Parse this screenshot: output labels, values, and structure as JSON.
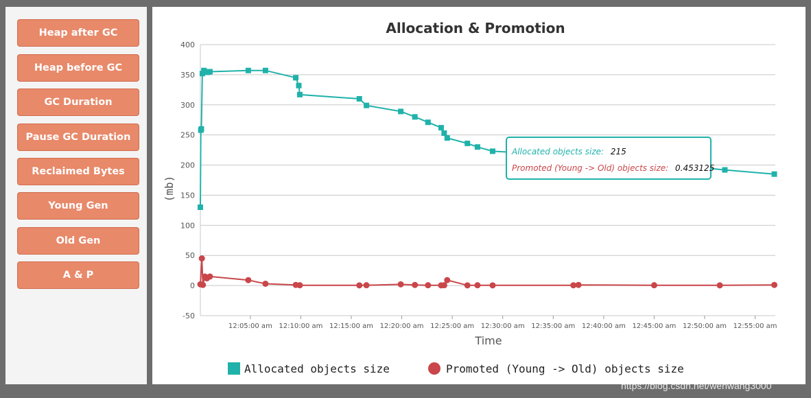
{
  "sidebar": {
    "buttons": [
      {
        "label": "Heap after GC"
      },
      {
        "label": "Heap before GC"
      },
      {
        "label": "GC Duration"
      },
      {
        "label": "Pause GC Duration"
      },
      {
        "label": "Reclaimed Bytes"
      },
      {
        "label": "Young Gen"
      },
      {
        "label": "Old Gen"
      },
      {
        "label": "A & P"
      }
    ]
  },
  "colors": {
    "allocated": "#20b2aa",
    "promoted": "#c9464a",
    "button": "#e8896a"
  },
  "tooltip": {
    "allocated_label": "Allocated objects size:",
    "allocated_value": "215",
    "promoted_label": "Promoted (Young -> Old) objects size:",
    "promoted_value": "0.453125"
  },
  "watermark": "https://blog.csdn.net/wenwang3000",
  "chart_data": {
    "type": "line",
    "title": "Allocation & Promotion",
    "xlabel": "Time",
    "ylabel": "(mb)",
    "x_unit": "minutes after 12:00",
    "xlim": [
      0.05,
      57
    ],
    "ylim": [
      -50,
      400
    ],
    "yticks": [
      -50,
      0,
      50,
      100,
      150,
      200,
      250,
      300,
      350,
      400
    ],
    "xticks": [
      {
        "x": 5,
        "label": "12:05:00 am"
      },
      {
        "x": 10,
        "label": "12:10:00 am"
      },
      {
        "x": 15,
        "label": "12:15:00 am"
      },
      {
        "x": 20,
        "label": "12:20:00 am"
      },
      {
        "x": 25,
        "label": "12:25:00 am"
      },
      {
        "x": 30,
        "label": "12:30:00 am"
      },
      {
        "x": 35,
        "label": "12:35:00 am"
      },
      {
        "x": 40,
        "label": "12:40:00 am"
      },
      {
        "x": 45,
        "label": "12:45:00 am"
      },
      {
        "x": 50,
        "label": "12:50:00 am"
      },
      {
        "x": 55,
        "label": "12:55:00 am"
      }
    ],
    "grid": true,
    "legend": "bottom",
    "series": [
      {
        "name": "Allocated objects size",
        "marker": "square",
        "x": [
          0.05,
          0.1,
          0.15,
          0.25,
          0.4,
          0.5,
          0.6,
          0.8,
          1.0,
          4.8,
          6.5,
          9.5,
          9.8,
          9.9,
          15.8,
          16.5,
          19.9,
          21.3,
          22.6,
          23.9,
          24.2,
          24.5,
          26.5,
          27.5,
          29.0,
          38.0,
          52.0,
          56.9
        ],
        "y": [
          130,
          258,
          260,
          352,
          357,
          355,
          355,
          354,
          355,
          357,
          357,
          345,
          332,
          317,
          310,
          299,
          289,
          280,
          271,
          262,
          253,
          245,
          236,
          230,
          223,
          215,
          192,
          185
        ]
      },
      {
        "name": "Promoted (Young -> Old) objects size",
        "marker": "circle",
        "x": [
          0.05,
          0.2,
          0.3,
          0.5,
          0.7,
          1.0,
          4.8,
          6.5,
          9.5,
          9.9,
          15.8,
          16.5,
          19.9,
          21.3,
          22.6,
          23.9,
          24.2,
          24.5,
          26.5,
          27.5,
          29.0,
          37.0,
          37.5,
          45.0,
          51.5,
          56.9
        ],
        "y": [
          2,
          45,
          1,
          15,
          12,
          15,
          9,
          3,
          1,
          0.5,
          0.3,
          0.5,
          2,
          1,
          0.5,
          0.3,
          0.5,
          9,
          0.3,
          0.5,
          0.3,
          0.453125,
          1,
          0.5,
          0.3,
          1
        ]
      }
    ]
  }
}
